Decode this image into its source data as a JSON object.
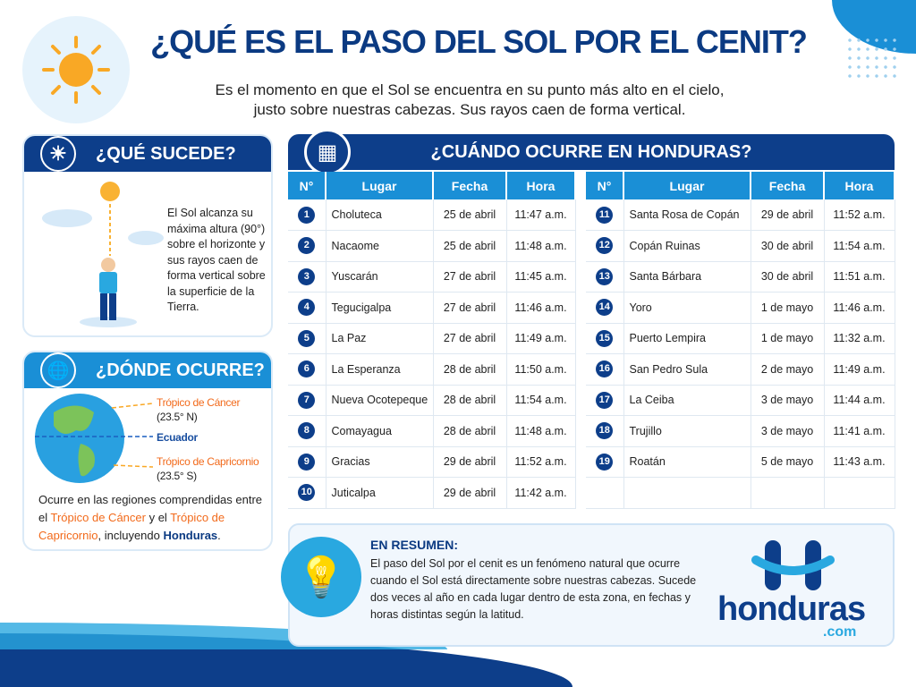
{
  "header": {
    "title": "¿QUÉ ES EL PASO DEL SOL POR EL CENIT?",
    "subtitle_line1": "Es el momento en que el Sol se encuentra en su punto más alto en el cielo,",
    "subtitle_line2": "justo sobre nuestras cabezas. Sus rayos caen de forma vertical."
  },
  "que_sucede": {
    "title": "¿QUÉ SUCEDE?",
    "text": "El Sol alcanza su máxima altura (90°) sobre el horizonte y sus rayos caen de forma vertical sobre la superficie de la Tierra."
  },
  "donde_ocurre": {
    "title": "¿DÓNDE OCURRE?",
    "cancer": "Trópico de Cáncer",
    "cancer_lat": "(23.5° N)",
    "ecuador": "Ecuador",
    "capricornio": "Trópico de Capricornio",
    "capricornio_lat": "(23.5° S)",
    "text_1": "Ocurre en las regiones comprendidas entre el ",
    "text_cancer": "Trópico de Cáncer",
    "text_2": " y el ",
    "text_capricornio": "Trópico de Capricornio",
    "text_3": ", incluyendo ",
    "text_honduras": "Honduras",
    "text_4": "."
  },
  "cuando": {
    "title": "¿CUÁNDO OCURRE EN HONDURAS?",
    "columns": [
      "N°",
      "Lugar",
      "Fecha",
      "Hora"
    ],
    "rows": [
      [
        "1",
        "Choluteca",
        "25 de abril",
        "11:47 a.m."
      ],
      [
        "2",
        "Nacaome",
        "25 de abril",
        "11:48 a.m."
      ],
      [
        "3",
        "Yuscarán",
        "27 de abril",
        "11:45 a.m."
      ],
      [
        "4",
        "Tegucigalpa",
        "27 de abril",
        "11:46 a.m."
      ],
      [
        "5",
        "La Paz",
        "27 de abril",
        "11:49 a.m."
      ],
      [
        "6",
        "La Esperanza",
        "28 de abril",
        "11:50 a.m."
      ],
      [
        "7",
        "Nueva Ocotepeque",
        "28 de abril",
        "11:54 a.m."
      ],
      [
        "8",
        "Comayagua",
        "28 de abril",
        "11:48 a.m."
      ],
      [
        "9",
        "Gracias",
        "29 de abril",
        "11:52 a.m."
      ],
      [
        "10",
        "Juticalpa",
        "29 de abril",
        "11:42 a.m."
      ],
      [
        "11",
        "Santa Rosa de Copán",
        "29 de abril",
        "11:52 a.m."
      ],
      [
        "12",
        "Copán Ruinas",
        "30 de abril",
        "11:54 a.m."
      ],
      [
        "13",
        "Santa Bárbara",
        "30 de abril",
        "11:51 a.m."
      ],
      [
        "14",
        "Yoro",
        "1 de mayo",
        "11:46 a.m."
      ],
      [
        "15",
        "Puerto Lempira",
        "1 de mayo",
        "11:32 a.m."
      ],
      [
        "16",
        "San Pedro Sula",
        "2 de mayo",
        "11:49 a.m."
      ],
      [
        "17",
        "La Ceiba",
        "3 de mayo",
        "11:44 a.m."
      ],
      [
        "18",
        "Trujillo",
        "3 de mayo",
        "11:41 a.m."
      ],
      [
        "19",
        "Roatán",
        "5 de mayo",
        "11:43 a.m."
      ]
    ]
  },
  "resumen": {
    "title": "EN RESUMEN:",
    "text": "El paso del Sol por el cenit es un fenómeno natural que ocurre cuando el Sol está directamente sobre nuestras cabezas. Sucede dos veces al año en cada lugar dentro de esta zona, en fechas y horas distintas según la latitud."
  },
  "logo": {
    "name": "honduras",
    "tld": ".com"
  },
  "colors": {
    "navy": "#0d3e8a",
    "blue": "#1a8fd6",
    "orange": "#f26a1b",
    "sun": "#f9b233"
  }
}
